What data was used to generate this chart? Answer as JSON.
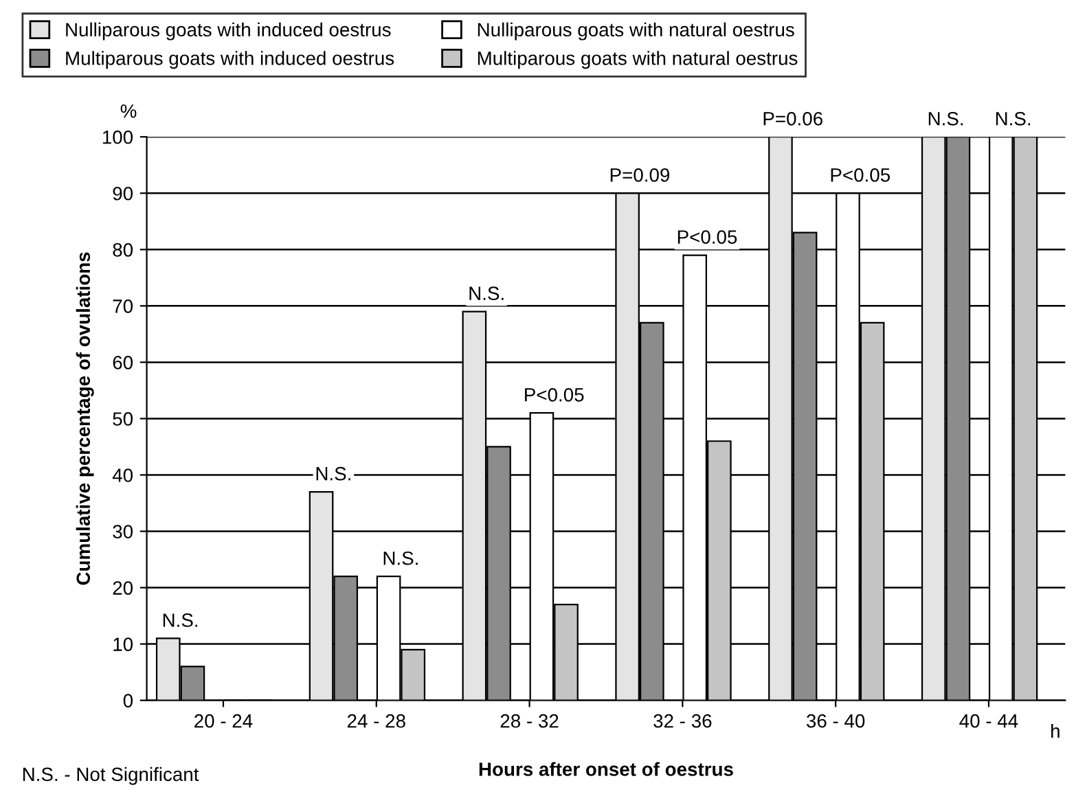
{
  "chart_data": {
    "type": "bar",
    "xlabel": "Hours after onset of oestrus",
    "ylabel": "Cumulative percentage of ovulations",
    "categories": [
      "20 - 24",
      "24 - 28",
      "28 - 32",
      "32 - 36",
      "36 - 40",
      "40 - 44"
    ],
    "series": [
      {
        "name": "Nulliparous goats with induced oestrus",
        "color": "#e4e4e4",
        "values": [
          11,
          37,
          69,
          90,
          100,
          100
        ]
      },
      {
        "name": "Multiparous goats with induced oestrus",
        "color": "#8c8c8c",
        "values": [
          6,
          22,
          45,
          67,
          83,
          100
        ]
      },
      {
        "name": "Nulliparous goats with natural oestrus",
        "color": "#ffffff",
        "values": [
          0,
          22,
          51,
          79,
          90,
          100
        ]
      },
      {
        "name": "Multiparous goats with natural oestrus",
        "color": "#c4c4c4",
        "values": [
          0,
          9,
          17,
          46,
          67,
          100
        ]
      }
    ],
    "ylim": [
      0,
      100
    ],
    "yticks": [
      0,
      10,
      20,
      30,
      40,
      50,
      60,
      70,
      80,
      90,
      100
    ],
    "grid": "y",
    "legend": "top",
    "annotations": [
      "N.S.",
      "N.S.",
      "N.S.",
      "N.S.",
      "P<0.05",
      "P=0.09",
      "P<0.05",
      "P=0.06",
      "P<0.05",
      "N.S.",
      "N.S.",
      "%",
      "h",
      "N.S. - Not Significant"
    ]
  }
}
